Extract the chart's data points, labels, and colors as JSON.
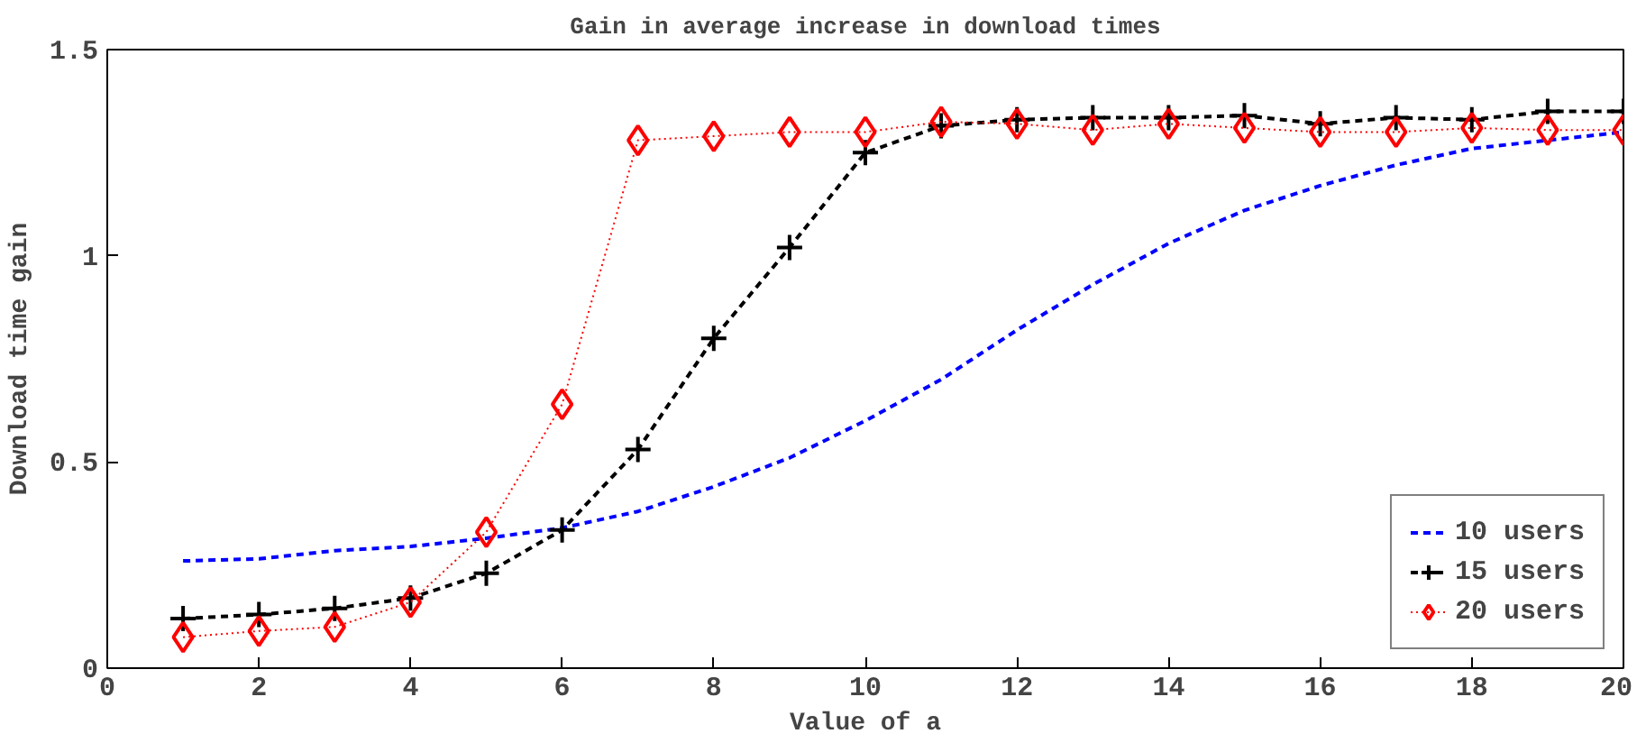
{
  "chart_data": {
    "type": "line",
    "title": "Gain in average increase in download times",
    "xlabel": "Value of a",
    "ylabel": "Download time gain",
    "x": [
      1,
      2,
      3,
      4,
      5,
      6,
      7,
      8,
      9,
      10,
      11,
      12,
      13,
      14,
      15,
      16,
      17,
      18,
      19,
      20
    ],
    "series": [
      {
        "name": "10 users",
        "color": "#0000ff",
        "marker": "none",
        "line_style": "dashed",
        "values": [
          0.26,
          0.265,
          0.285,
          0.295,
          0.315,
          0.34,
          0.38,
          0.44,
          0.51,
          0.6,
          0.7,
          0.82,
          0.93,
          1.03,
          1.11,
          1.17,
          1.22,
          1.26,
          1.28,
          1.3
        ]
      },
      {
        "name": "15 users",
        "color": "#000000",
        "marker": "cross",
        "line_style": "dashed",
        "values": [
          0.12,
          0.13,
          0.145,
          0.17,
          0.23,
          0.335,
          0.53,
          0.8,
          1.02,
          1.25,
          1.315,
          1.33,
          1.335,
          1.335,
          1.34,
          1.32,
          1.335,
          1.33,
          1.35,
          1.35
        ]
      },
      {
        "name": "20 users",
        "color": "#ff0000",
        "marker": "diamond",
        "line_style": "dotted",
        "values": [
          0.075,
          0.09,
          0.1,
          0.16,
          0.33,
          0.64,
          1.28,
          1.29,
          1.3,
          1.3,
          1.325,
          1.32,
          1.305,
          1.32,
          1.31,
          1.3,
          1.3,
          1.31,
          1.305,
          1.305
        ]
      }
    ],
    "xlim": [
      0,
      20
    ],
    "ylim": [
      0,
      1.5
    ],
    "xticks": [
      0,
      2,
      4,
      6,
      8,
      10,
      12,
      14,
      16,
      18,
      20
    ],
    "yticks": [
      0,
      0.5,
      1,
      1.5
    ],
    "grid": false,
    "legend": "bottom right"
  }
}
